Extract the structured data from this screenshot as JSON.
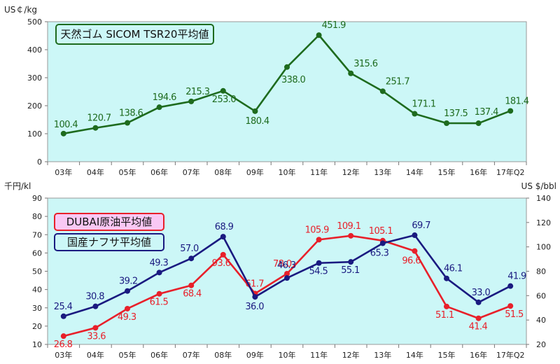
{
  "chart_data": [
    {
      "type": "line",
      "ylabel": "US￠/kg",
      "ylim": [
        0,
        500
      ],
      "yticks": [
        0,
        100,
        200,
        300,
        400,
        500
      ],
      "categories": [
        "03年",
        "04年",
        "05年",
        "06年",
        "07年",
        "08年",
        "09年",
        "10年",
        "11年",
        "12年",
        "13年",
        "14年",
        "15年",
        "16年",
        "17年Q2"
      ],
      "grid": false,
      "background": "#ccf7f7",
      "legend_position": "top-left",
      "series": [
        {
          "name": "天然ゴム SICOM TSR20平均値",
          "color": "#1e6b1e",
          "values": [
            100.4,
            120.7,
            138.6,
            194.6,
            215.3,
            253.0,
            180.4,
            338.0,
            451.9,
            315.6,
            251.7,
            171.1,
            137.5,
            137.4,
            181.4
          ],
          "labels": [
            "100.4",
            "120.7",
            "138.6",
            "194.6",
            "215.3",
            "253.0",
            "180.4",
            "338.0",
            "451.9",
            "315.6",
            "251.7",
            "171.1",
            "137.5",
            "137.4",
            "181.4"
          ]
        }
      ]
    },
    {
      "type": "line",
      "ylabel": "千円/kl",
      "y2label": "US $/bbl",
      "ylim": [
        10,
        90
      ],
      "yticks": [
        10,
        20,
        30,
        40,
        50,
        60,
        70,
        80,
        90
      ],
      "y2lim": [
        20,
        140
      ],
      "y2ticks": [
        20,
        40,
        60,
        80,
        100,
        120,
        140
      ],
      "categories": [
        "03年",
        "04年",
        "05年",
        "06年",
        "07年",
        "08年",
        "09年",
        "10年",
        "11年",
        "12年",
        "13年",
        "14年",
        "15年",
        "16年",
        "17年Q2"
      ],
      "grid": false,
      "background": "#ccf7f7",
      "legend_position": "top-left",
      "series": [
        {
          "name": "DUBAI原油平均値",
          "color": "#e8202a",
          "axis": "right",
          "values": [
            26.8,
            33.6,
            49.3,
            61.5,
            68.4,
            93.6,
            61.7,
            78.0,
            105.9,
            109.1,
            105.1,
            96.6,
            51.1,
            41.4,
            51.5
          ],
          "labels": [
            "26.8",
            "33.6",
            "49.3",
            "61.5",
            "68.4",
            "93.6",
            "61.7",
            "78.0",
            "105.9",
            "109.1",
            "105.1",
            "96.6",
            "51.1",
            "41.4",
            "51.5"
          ]
        },
        {
          "name": "国産ナフサ平均値",
          "color": "#1a1a80",
          "axis": "left",
          "values": [
            25.4,
            30.8,
            39.2,
            49.3,
            57.0,
            68.9,
            36.0,
            46.3,
            54.5,
            55.1,
            65.3,
            69.7,
            46.1,
            33.0,
            41.9
          ],
          "labels": [
            "25.4",
            "30.8",
            "39.2",
            "49.3",
            "57.0",
            "68.9",
            "36.0",
            "46.3",
            "54.5",
            "55.1",
            "65.3",
            "69.7",
            "46.1",
            "33.0",
            "41.9"
          ]
        }
      ]
    }
  ]
}
